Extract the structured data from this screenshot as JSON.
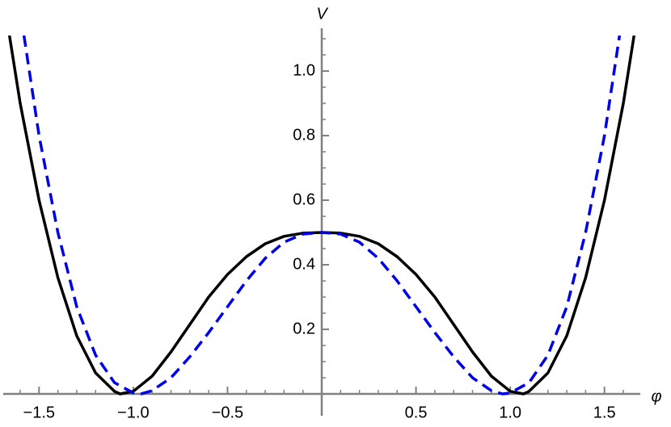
{
  "chart_data": {
    "type": "line",
    "x_label": "φ",
    "y_label": "V",
    "xlim": [
      -1.69,
      1.69
    ],
    "ylim": [
      0,
      1.11
    ],
    "xticks": [
      {
        "value": -1.5,
        "label": "−1.5"
      },
      {
        "value": -1.0,
        "label": "−1.0"
      },
      {
        "value": -0.5,
        "label": "−0.5"
      },
      0.5,
      {
        "value": 1.0,
        "label": "1.0"
      },
      1.5
    ],
    "yticks": [
      0.2,
      0.4,
      0.6,
      0.8,
      {
        "value": 1.0,
        "label": "1.0"
      }
    ],
    "xminorticks": [
      -1.6,
      -1.4,
      -1.3,
      -1.2,
      -1.1,
      -0.9,
      -0.8,
      -0.7,
      -0.6,
      -0.4,
      -0.3,
      -0.2,
      -0.1,
      0.1,
      0.2,
      0.3,
      0.4,
      0.6,
      0.7,
      0.8,
      0.9,
      1.1,
      1.2,
      1.3,
      1.4,
      1.6
    ],
    "yminorticks": [
      0.05,
      0.1,
      0.15,
      0.25,
      0.3,
      0.35,
      0.45,
      0.5,
      0.55,
      0.65,
      0.7,
      0.75,
      0.85,
      0.9,
      0.95,
      1.05,
      1.1
    ],
    "series": [
      {
        "color": "#000000",
        "dashed": false,
        "x": [
          -1.657,
          -1.6,
          -1.5,
          -1.4,
          -1.3,
          -1.2,
          -1.1,
          -1.07,
          -1.0,
          -0.9,
          -0.8,
          -0.7,
          -0.6,
          -0.5,
          -0.4,
          -0.3,
          -0.2,
          -0.1,
          0,
          0.1,
          0.2,
          0.3,
          0.4,
          0.5,
          0.6,
          0.7,
          0.8,
          0.9,
          1.0,
          1.07,
          1.1,
          1.2,
          1.3,
          1.4,
          1.5,
          1.6,
          1.657
        ],
        "values": [
          1.11,
          0.9,
          0.6,
          0.36,
          0.18,
          0.065,
          0.008,
          0,
          0.008,
          0.055,
          0.13,
          0.215,
          0.3,
          0.37,
          0.425,
          0.465,
          0.488,
          0.498,
          0.5,
          0.498,
          0.488,
          0.465,
          0.425,
          0.37,
          0.3,
          0.215,
          0.13,
          0.055,
          0.008,
          0,
          0.008,
          0.065,
          0.18,
          0.36,
          0.6,
          0.9,
          1.11
        ]
      },
      {
        "color": "#0000e6",
        "dashed": true,
        "x": [
          -1.58,
          -1.5,
          -1.4,
          -1.3,
          -1.2,
          -1.1,
          -1.0,
          -0.96,
          -0.9,
          -0.8,
          -0.7,
          -0.6,
          -0.5,
          -0.4,
          -0.3,
          -0.2,
          -0.1,
          0,
          0.1,
          0.2,
          0.3,
          0.4,
          0.5,
          0.6,
          0.7,
          0.8,
          0.9,
          0.96,
          1.0,
          1.1,
          1.2,
          1.3,
          1.4,
          1.5,
          1.58
        ],
        "values": [
          1.11,
          0.8,
          0.5,
          0.27,
          0.12,
          0.035,
          0.003,
          0,
          0.01,
          0.05,
          0.115,
          0.19,
          0.27,
          0.35,
          0.42,
          0.47,
          0.495,
          0.5,
          0.495,
          0.47,
          0.42,
          0.35,
          0.27,
          0.19,
          0.115,
          0.05,
          0.01,
          0,
          0.003,
          0.035,
          0.12,
          0.27,
          0.5,
          0.8,
          1.11
        ]
      }
    ]
  }
}
